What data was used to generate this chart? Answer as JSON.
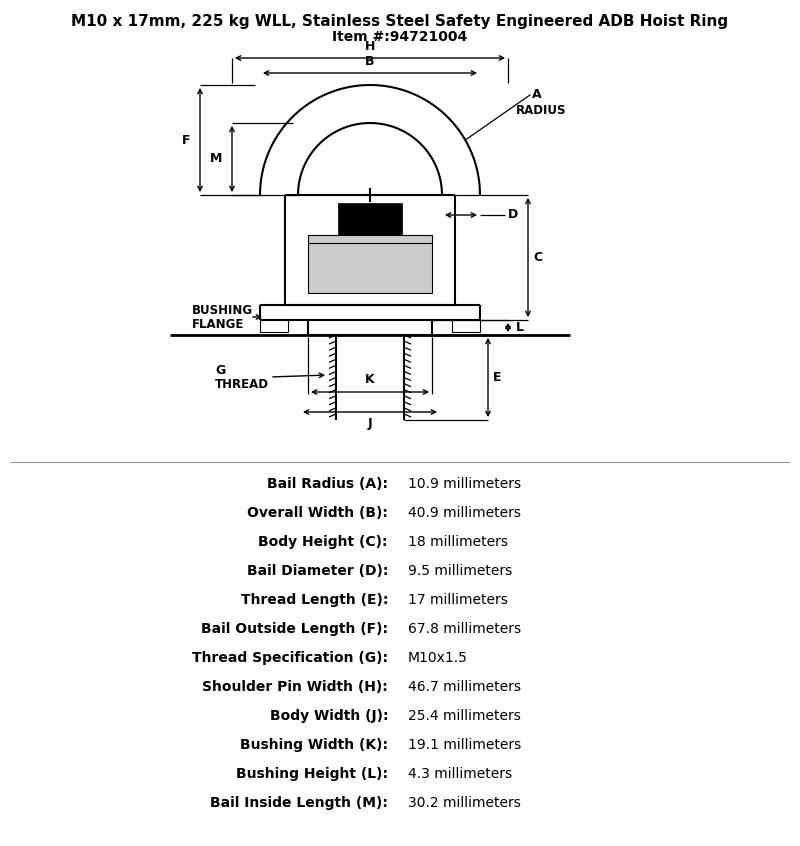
{
  "title_line1": "M10 x 17mm, 225 kg WLL, Stainless Steel Safety Engineered ADB Hoist Ring",
  "title_line2": "Item #:94721004",
  "specs": [
    [
      "Bail Radius (A):",
      "10.9 millimeters"
    ],
    [
      "Overall Width (B):",
      "40.9 millimeters"
    ],
    [
      "Body Height (C):",
      "18 millimeters"
    ],
    [
      "Bail Diameter (D):",
      "9.5 millimeters"
    ],
    [
      "Thread Length (E):",
      "17 millimeters"
    ],
    [
      "Bail Outside Length (F):",
      "67.8 millimeters"
    ],
    [
      "Thread Specification (G):",
      "M10x1.5"
    ],
    [
      "Shoulder Pin Width (H):",
      "46.7 millimeters"
    ],
    [
      "Body Width (J):",
      "25.4 millimeters"
    ],
    [
      "Bushing Width (K):",
      "19.1 millimeters"
    ],
    [
      "Bushing Height (L):",
      "4.3 millimeters"
    ],
    [
      "Bail Inside Length (M):",
      "30.2 millimeters"
    ]
  ],
  "bg_color": "#ffffff",
  "line_color": "#000000"
}
